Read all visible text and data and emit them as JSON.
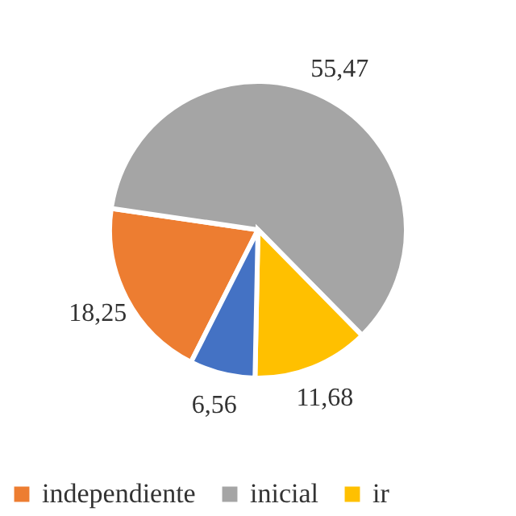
{
  "chart_data": {
    "type": "pie",
    "categories": [
      "independiente",
      "inicial",
      "ir",
      null
    ],
    "values": [
      18.25,
      55.47,
      11.68,
      6.56
    ],
    "colors": [
      "#ed7d31",
      "#a5a5a5",
      "#ffc000",
      "#4472c4"
    ],
    "value_labels": [
      "18,25",
      "55,47",
      "11,68",
      "6,56"
    ],
    "legend": "bottom"
  }
}
